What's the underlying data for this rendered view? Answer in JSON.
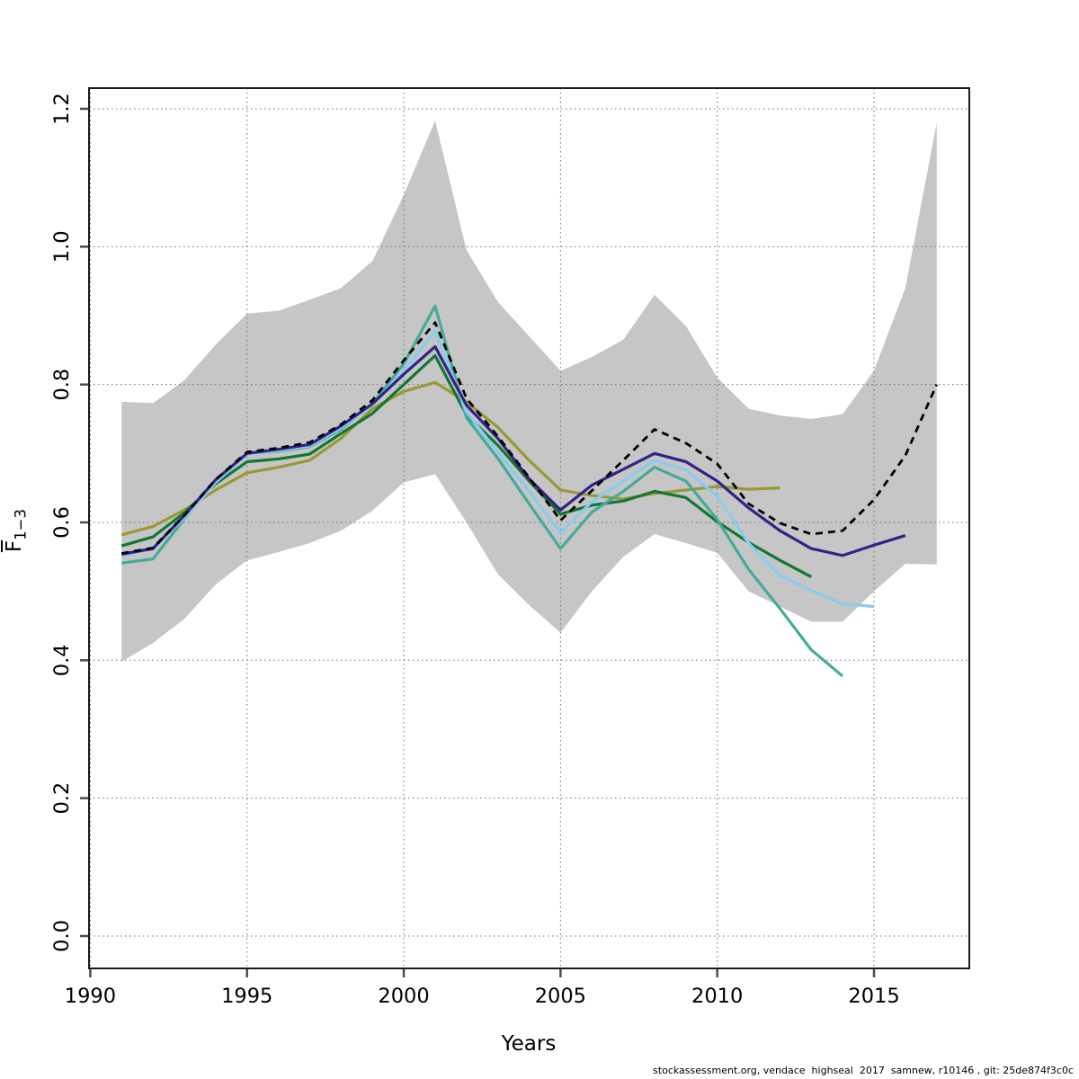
{
  "figure": {
    "background": "#ffffff",
    "footer": "stockassessment.org, vendace  highseal  2017  samnew, r10146 , git: 25de874f3c0c"
  },
  "chart_data": {
    "type": "line",
    "title": "",
    "xlabel": "Years",
    "ylabel": {
      "base": "F",
      "sub": "1−3",
      "overline": true
    },
    "xlim": [
      1989.96,
      2018.04
    ],
    "ylim": [
      -0.047,
      1.23
    ],
    "x_ticks": [
      1990,
      1995,
      2000,
      2005,
      2010,
      2015
    ],
    "x_tick_labels": [
      "1990",
      "1995",
      "2000",
      "2005",
      "2010",
      "2015"
    ],
    "y_ticks": [
      0.0,
      0.2,
      0.4,
      0.6,
      0.8,
      1.0,
      1.2
    ],
    "y_tick_labels": [
      "0.0",
      "0.2",
      "0.4",
      "0.6",
      "0.8",
      "1.0",
      "1.2"
    ],
    "grid": true,
    "grid_color": "#6e6e6e",
    "band": {
      "name": "confidence-interval-band",
      "color": "#c6c6c6",
      "years": [
        1991,
        1992,
        1993,
        1994,
        1995,
        1996,
        1997,
        1998,
        1999,
        2000,
        2001,
        2002,
        2003,
        2004,
        2005,
        2006,
        2007,
        2008,
        2009,
        2010,
        2011,
        2012,
        2013,
        2014,
        2015,
        2016,
        2017
      ],
      "upper": [
        0.775,
        0.773,
        0.806,
        0.858,
        0.903,
        0.907,
        0.923,
        0.94,
        0.979,
        1.075,
        1.183,
        0.995,
        0.92,
        0.87,
        0.82,
        0.84,
        0.865,
        0.93,
        0.885,
        0.81,
        0.765,
        0.755,
        0.75,
        0.757,
        0.82,
        0.94,
        1.18
      ],
      "lower": [
        0.398,
        0.425,
        0.46,
        0.51,
        0.545,
        0.557,
        0.57,
        0.588,
        0.617,
        0.658,
        0.67,
        0.6,
        0.525,
        0.48,
        0.44,
        0.5,
        0.55,
        0.583,
        0.57,
        0.556,
        0.5,
        0.478,
        0.456,
        0.456,
        0.5,
        0.54,
        0.539
      ]
    },
    "series": [
      {
        "name": "base-run-2017",
        "color": "#000000",
        "dashed": true,
        "width": 2.8,
        "years": [
          1991,
          1992,
          1993,
          1994,
          1995,
          1996,
          1997,
          1998,
          1999,
          2000,
          2001,
          2002,
          2003,
          2004,
          2005,
          2006,
          2007,
          2008,
          2009,
          2010,
          2011,
          2012,
          2013,
          2014,
          2015,
          2016,
          2017
        ],
        "values": [
          0.555,
          0.563,
          0.61,
          0.662,
          0.702,
          0.708,
          0.716,
          0.742,
          0.777,
          0.835,
          0.89,
          0.78,
          0.725,
          0.665,
          0.603,
          0.646,
          0.69,
          0.735,
          0.715,
          0.685,
          0.627,
          0.599,
          0.583,
          0.588,
          0.633,
          0.697,
          0.8
        ]
      },
      {
        "name": "retro-peel-2016",
        "color": "#332288",
        "dashed": false,
        "width": 3.2,
        "years": [
          1991,
          1992,
          1993,
          1994,
          1995,
          1996,
          1997,
          1998,
          1999,
          2000,
          2001,
          2002,
          2003,
          2004,
          2005,
          2006,
          2007,
          2008,
          2009,
          2010,
          2011,
          2012,
          2013,
          2014,
          2015,
          2016
        ],
        "values": [
          0.554,
          0.562,
          0.61,
          0.662,
          0.7,
          0.706,
          0.713,
          0.74,
          0.772,
          0.815,
          0.855,
          0.77,
          0.722,
          0.663,
          0.618,
          0.654,
          0.677,
          0.7,
          0.688,
          0.66,
          0.621,
          0.588,
          0.562,
          0.552,
          0.567,
          0.581
        ]
      },
      {
        "name": "retro-peel-2015",
        "color": "#88CCEE",
        "dashed": false,
        "width": 3.2,
        "years": [
          1991,
          1992,
          1993,
          1994,
          1995,
          1996,
          1997,
          1998,
          1999,
          2000,
          2001,
          2002,
          2003,
          2004,
          2005,
          2006,
          2007,
          2008,
          2009,
          2010,
          2011,
          2012,
          2013,
          2014,
          2015
        ],
        "values": [
          0.55,
          0.564,
          0.606,
          0.658,
          0.699,
          0.704,
          0.711,
          0.737,
          0.77,
          0.82,
          0.878,
          0.76,
          0.702,
          0.645,
          0.585,
          0.63,
          0.66,
          0.69,
          0.676,
          0.638,
          0.57,
          0.523,
          0.501,
          0.482,
          0.478
        ]
      },
      {
        "name": "retro-peel-2014",
        "color": "#44AA99",
        "dashed": false,
        "width": 3.2,
        "years": [
          1991,
          1992,
          1993,
          1994,
          1995,
          1996,
          1997,
          1998,
          1999,
          2000,
          2001,
          2002,
          2003,
          2004,
          2005,
          2006,
          2007,
          2008,
          2009,
          2010,
          2011,
          2012,
          2013,
          2014
        ],
        "values": [
          0.541,
          0.547,
          0.605,
          0.66,
          0.7,
          0.703,
          0.71,
          0.735,
          0.772,
          0.83,
          0.914,
          0.752,
          0.693,
          0.627,
          0.562,
          0.615,
          0.645,
          0.68,
          0.66,
          0.604,
          0.532,
          0.475,
          0.415,
          0.377
        ]
      },
      {
        "name": "retro-peel-2013",
        "color": "#117733",
        "dashed": false,
        "width": 3.2,
        "years": [
          1991,
          1992,
          1993,
          1994,
          1995,
          1996,
          1997,
          1998,
          1999,
          2000,
          2001,
          2002,
          2003,
          2004,
          2005,
          2006,
          2007,
          2008,
          2009,
          2010,
          2011,
          2012,
          2013
        ],
        "values": [
          0.566,
          0.579,
          0.614,
          0.656,
          0.688,
          0.692,
          0.699,
          0.729,
          0.758,
          0.8,
          0.842,
          0.756,
          0.712,
          0.66,
          0.612,
          0.625,
          0.631,
          0.645,
          0.636,
          0.601,
          0.571,
          0.545,
          0.521
        ]
      },
      {
        "name": "retro-peel-2012",
        "color": "#999933",
        "dashed": false,
        "width": 3.2,
        "years": [
          1991,
          1992,
          1993,
          1994,
          1995,
          1996,
          1997,
          1998,
          1999,
          2000,
          2001,
          2002,
          2003,
          2004,
          2005,
          2006,
          2007,
          2008,
          2009,
          2010,
          2011,
          2012
        ],
        "values": [
          0.582,
          0.594,
          0.618,
          0.647,
          0.672,
          0.68,
          0.69,
          0.722,
          0.765,
          0.79,
          0.803,
          0.775,
          0.738,
          0.69,
          0.647,
          0.639,
          0.634,
          0.642,
          0.647,
          0.652,
          0.648,
          0.65
        ]
      }
    ]
  }
}
